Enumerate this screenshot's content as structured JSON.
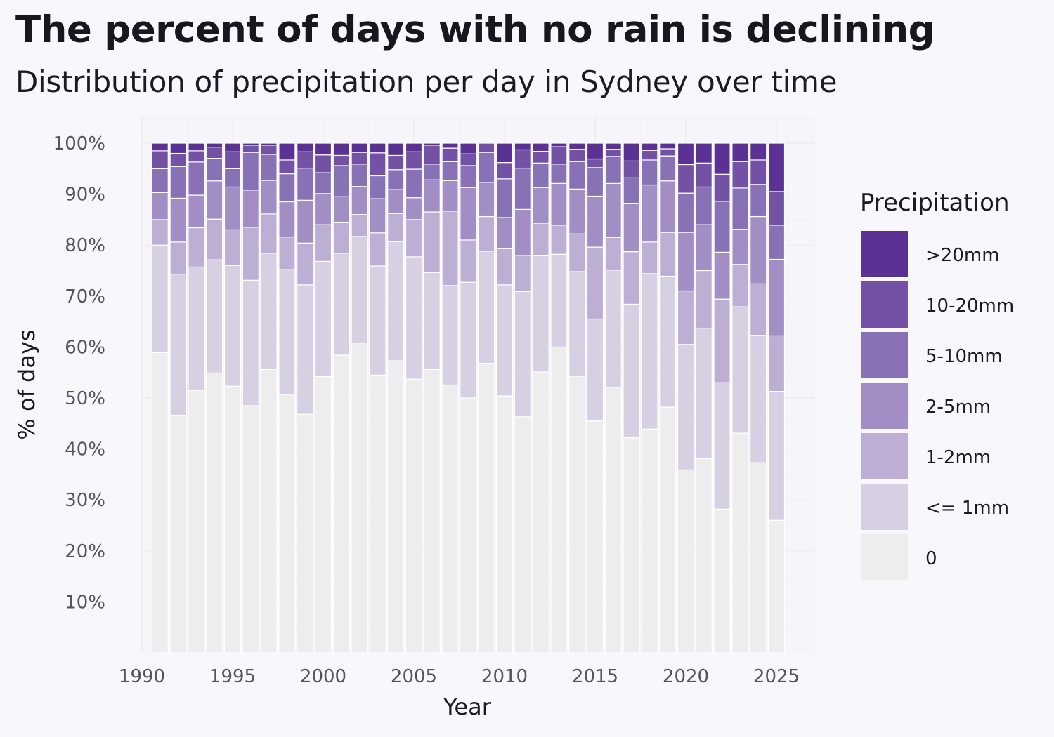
{
  "chart_data": {
    "type": "bar",
    "stacked": true,
    "normalized_percent": true,
    "title": "The percent of days with no rain is declining",
    "subtitle": "Distribution of precipitation per day in Sydney over time",
    "xlabel": "Year",
    "ylabel": "% of days",
    "ylim": [
      0,
      100
    ],
    "xlim": [
      1990,
      2025
    ],
    "x_ticks": [
      "1990",
      "1995",
      "2000",
      "2005",
      "2010",
      "2015",
      "2020",
      "2025"
    ],
    "y_ticks": [
      "10%",
      "20%",
      "30%",
      "40%",
      "50%",
      "60%",
      "70%",
      "80%",
      "90%",
      "100%"
    ],
    "legend_title": "Precipitation",
    "legend_position": "right",
    "grid": true,
    "x": [
      1991,
      1992,
      1993,
      1994,
      1995,
      1996,
      1997,
      1998,
      1999,
      2000,
      2001,
      2002,
      2003,
      2004,
      2005,
      2006,
      2007,
      2008,
      2009,
      2010,
      2011,
      2012,
      2013,
      2014,
      2015,
      2016,
      2017,
      2018,
      2019,
      2020,
      2021,
      2022,
      2023,
      2024,
      2025
    ],
    "series": [
      {
        "name": "0",
        "color": "#ededed",
        "values": [
          58.9,
          46.6,
          51.5,
          57.1,
          52.3,
          48.5,
          55.6,
          50.7,
          46.8,
          54.2,
          58.4,
          60.8,
          54.5,
          57.3,
          53.7,
          55.6,
          53.6,
          50.0,
          56.8,
          50.4,
          46.3,
          55.1,
          60.0,
          54.3,
          45.5,
          52.1,
          42.2,
          43.9,
          48.2,
          35.9,
          38.1,
          28.2,
          43.1,
          37.3,
          26.0
        ]
      },
      {
        "name": "<= 1mm",
        "color": "#d6d0e2",
        "values": [
          21.1,
          27.7,
          24.2,
          23.1,
          23.7,
          24.6,
          22.8,
          24.5,
          25.4,
          22.6,
          20.0,
          20.9,
          21.4,
          23.4,
          24.0,
          19.0,
          19.9,
          22.7,
          22.0,
          21.8,
          24.6,
          22.8,
          18.2,
          20.5,
          20.0,
          23.0,
          26.2,
          30.5,
          25.7,
          24.6,
          25.6,
          24.8,
          24.8,
          25.0,
          25.3
        ]
      },
      {
        "name": "1-2mm",
        "color": "#bdaed4",
        "values": [
          5.0,
          6.3,
          7.7,
          8.3,
          7.0,
          10.4,
          7.7,
          6.4,
          8.2,
          7.2,
          6.1,
          4.3,
          6.5,
          5.5,
          7.3,
          11.9,
          14.9,
          8.3,
          6.8,
          7.1,
          7.1,
          6.4,
          5.7,
          7.4,
          14.1,
          6.4,
          10.3,
          6.2,
          8.6,
          10.5,
          11.3,
          16.4,
          8.3,
          10.1,
          10.9
        ]
      },
      {
        "name": "2-5mm",
        "color": "#a28ec4",
        "values": [
          5.3,
          8.6,
          6.4,
          7.8,
          8.4,
          7.3,
          6.6,
          6.9,
          8.4,
          6.1,
          5.0,
          5.5,
          6.7,
          4.7,
          4.3,
          6.3,
          6.1,
          10.3,
          6.7,
          6.1,
          9.0,
          7.0,
          8.2,
          8.8,
          10.0,
          10.6,
          9.5,
          11.2,
          10.1,
          11.5,
          9.0,
          9.2,
          6.9,
          13.2,
          15.0
        ]
      },
      {
        "name": "5-10mm",
        "color": "#8971b5",
        "values": [
          4.7,
          6.2,
          6.5,
          4.6,
          3.6,
          7.4,
          5.1,
          5.5,
          6.3,
          4.1,
          6.1,
          4.4,
          4.5,
          3.9,
          5.6,
          3.1,
          3.8,
          4.3,
          5.9,
          7.6,
          8.1,
          4.8,
          3.8,
          5.4,
          5.6,
          5.3,
          5.0,
          4.9,
          4.9,
          7.7,
          7.4,
          10.0,
          8.1,
          6.3,
          6.7
        ]
      },
      {
        "name": "10-20mm",
        "color": "#7352a6",
        "values": [
          3.5,
          2.6,
          2.2,
          2.3,
          3.3,
          1.4,
          1.8,
          2.7,
          3.2,
          3.5,
          2.0,
          2.3,
          4.5,
          2.8,
          3.4,
          3.7,
          2.7,
          2.3,
          1.8,
          3.2,
          3.6,
          2.3,
          3.4,
          2.4,
          1.7,
          1.4,
          3.3,
          1.9,
          1.4,
          5.6,
          4.7,
          5.3,
          5.2,
          4.8,
          6.6
        ]
      },
      {
        "name": ">20mm",
        "color": "#5b3294",
        "values": [
          1.5,
          2.0,
          1.5,
          0.8,
          1.7,
          0.4,
          0.4,
          3.3,
          1.7,
          2.3,
          2.4,
          1.8,
          1.9,
          2.4,
          1.7,
          0.4,
          1.0,
          2.1,
          0.0,
          3.8,
          1.3,
          1.6,
          0.7,
          1.2,
          3.1,
          1.2,
          3.5,
          1.4,
          1.1,
          4.2,
          3.9,
          6.1,
          3.6,
          3.3,
          9.5
        ]
      }
    ]
  }
}
